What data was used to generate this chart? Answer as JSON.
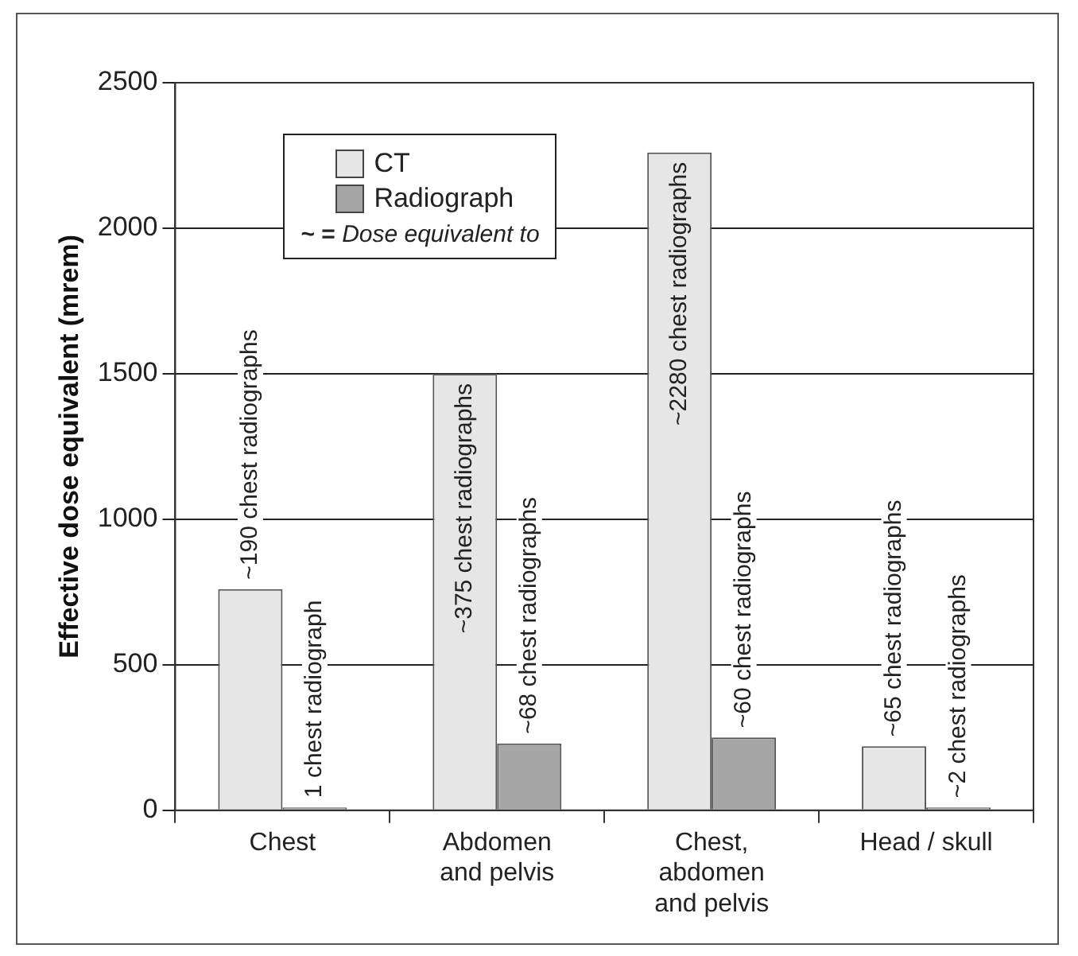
{
  "chart_data": {
    "type": "bar",
    "ylabel": "Effective dose equivalent (mrem)",
    "categories": [
      "Chest",
      "Abdomen\nand pelvis",
      "Chest,\nabdomen\nand pelvis",
      "Head / skull"
    ],
    "series": [
      {
        "name": "CT",
        "color": "#e6e6e6",
        "values": [
          760,
          1500,
          2260,
          220
        ]
      },
      {
        "name": "Radiograph",
        "color": "#a6a6a6",
        "values": [
          10,
          230,
          250,
          10
        ]
      }
    ],
    "ylim": [
      0,
      2500
    ],
    "yticks": [
      0,
      500,
      1000,
      1500,
      2000,
      2500
    ],
    "grid": "y",
    "legend": "top left",
    "annotations": [
      "~ = Dose equivalent to",
      {
        "text": "~190 chest radiographs",
        "x": "Chest",
        "y": 760
      },
      {
        "text": "1 chest radiograph",
        "x": "Chest",
        "y": 10
      },
      {
        "text": "~375 chest radiographs",
        "x": "Abdomen\nand pelvis",
        "y": 1500
      },
      {
        "text": "~68 chest radiographs",
        "x": "Abdomen\nand pelvis",
        "y": 230
      },
      {
        "text": "~2280 chest radiographs",
        "x": "Chest,\nabdomen\nand pelvis",
        "y": 2260
      },
      {
        "text": "~60 chest radiographs",
        "x": "Chest,\nabdomen\nand pelvis",
        "y": 250
      },
      {
        "text": "~65 chest radiographs",
        "x": "Head / skull",
        "y": 220
      },
      {
        "text": "~2 chest radiographs",
        "x": "Head / skull",
        "y": 10
      }
    ]
  }
}
